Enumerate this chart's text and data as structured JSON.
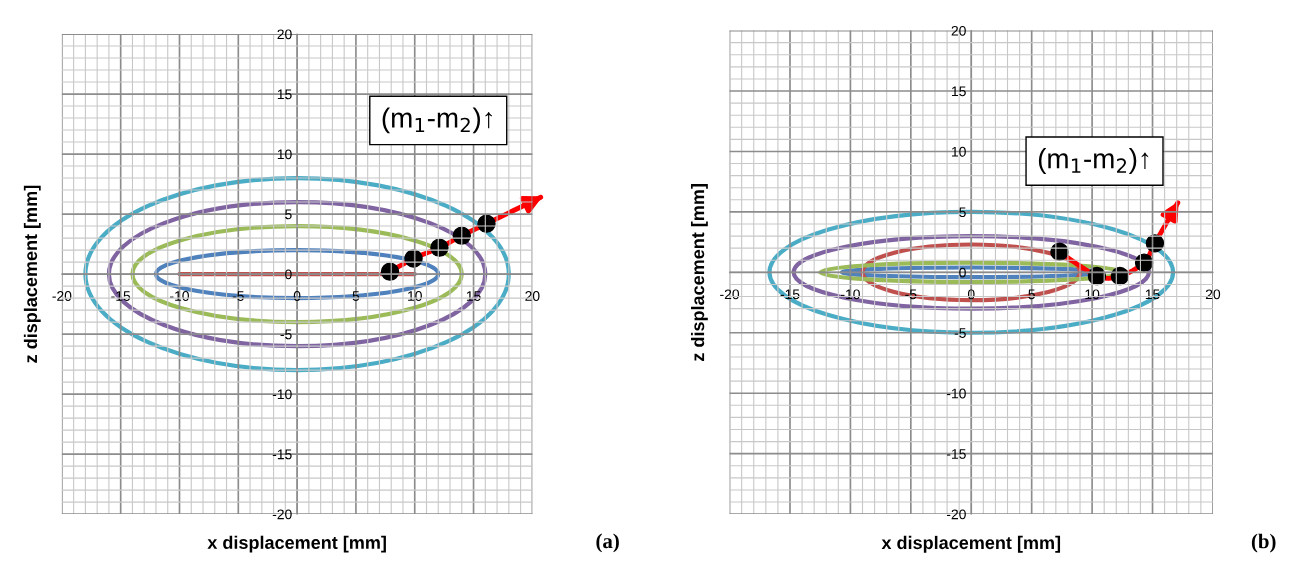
{
  "chart_data": [
    {
      "type": "line",
      "xlabel": "x displacement [mm]",
      "ylabel": "z displacement [mm]",
      "xlim": [
        -20,
        20
      ],
      "ylim": [
        -20,
        20
      ],
      "xticks": [
        -20,
        -15,
        -10,
        -5,
        0,
        5,
        10,
        15,
        20
      ],
      "yticks": [
        -20,
        -15,
        -10,
        -5,
        0,
        5,
        10,
        15,
        20
      ],
      "grid": true,
      "annotations": [
        "(m$_{1}$-m$_{2}$)↑",
        "(a)"
      ],
      "series": [
        {
          "color": "#c0504d",
          "x": [
            -10,
            10
          ],
          "values": [
            0,
            0
          ]
        },
        {
          "type": "scatter",
          "color": "#000000",
          "x": [
            7.9,
            9.9,
            12.1,
            14.0,
            16.1
          ],
          "values": [
            0.2,
            1.3,
            2.2,
            3.2,
            4.2
          ]
        }
      ]
    },
    {
      "type": "scatter",
      "xlabel": "x displacement [mm]",
      "ylabel": "z displacement [mm]",
      "xlim": [
        -20,
        20
      ],
      "ylim": [
        -20,
        20
      ],
      "xticks": [
        -20,
        -15,
        -10,
        -5,
        0,
        5,
        10,
        15,
        20
      ],
      "yticks": [
        -20,
        -15,
        -10,
        -5,
        0,
        5,
        10,
        15,
        20
      ],
      "grid": true,
      "annotations": [
        "(m$_{1}$-m$_{2}$)↑",
        "(b)"
      ],
      "series": [
        {
          "color": "#000000",
          "x": [
            7.3,
            10.4,
            12.3,
            14.3,
            15.2
          ],
          "values": [
            1.7,
            -0.3,
            -0.3,
            0.8,
            2.4
          ]
        }
      ]
    }
  ]
}
